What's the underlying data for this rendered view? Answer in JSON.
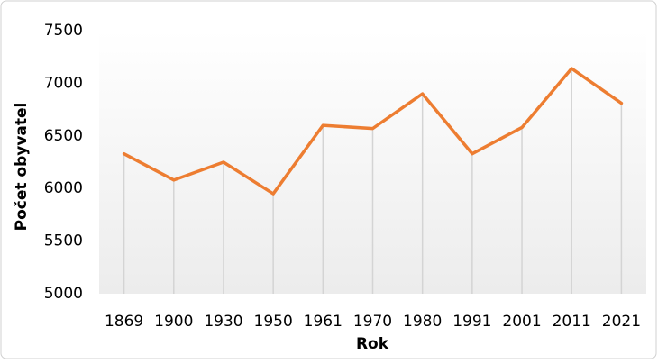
{
  "chart_data": {
    "type": "line",
    "x_label": "Rok",
    "y_label": "Počet obyvatel",
    "categories": [
      "1869",
      "1900",
      "1930",
      "1950",
      "1961",
      "1970",
      "1980",
      "1991",
      "2001",
      "2011",
      "2021"
    ],
    "values": [
      6330,
      6080,
      6250,
      5950,
      6600,
      6570,
      6900,
      6330,
      6580,
      7140,
      6810
    ],
    "color": "#ed7d31",
    "ylim": [
      5000,
      7500
    ],
    "yticks": [
      5000,
      5500,
      6000,
      6500,
      7000,
      7500
    ],
    "drop_lines": true
  }
}
